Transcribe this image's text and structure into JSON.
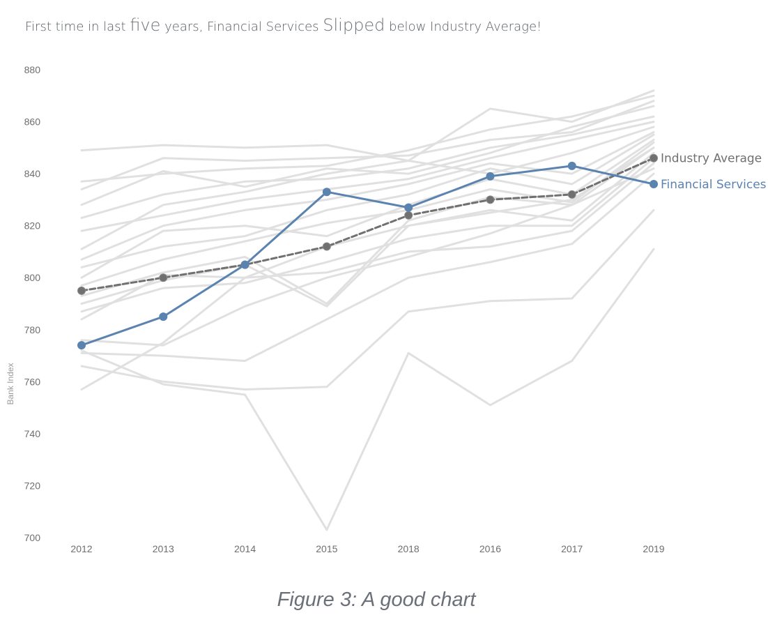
{
  "chart_data": {
    "type": "line",
    "title_parts": {
      "t1": "First time in last ",
      "t2": "five",
      "t3": " years, Financial Services ",
      "t4": "Slipped",
      "t5": " below Industry Average!"
    },
    "ylabel": "Bank Index",
    "xlabel": "",
    "ylim": [
      700,
      880
    ],
    "yticks": [
      700,
      720,
      740,
      760,
      780,
      800,
      820,
      840,
      860,
      880
    ],
    "categories": [
      "2012",
      "2013",
      "2014",
      "2015",
      "2018",
      "2016",
      "2017",
      "2019"
    ],
    "grid": false,
    "highlight_series": [
      {
        "name": "Financial Services",
        "color": "#5b83b0",
        "dashed": false,
        "values": [
          774,
          785,
          805,
          833,
          827,
          839,
          843,
          836
        ]
      },
      {
        "name": "Industry Average",
        "color": "#707070",
        "dashed": true,
        "values": [
          795,
          800,
          805,
          812,
          824,
          830,
          832,
          846
        ]
      }
    ],
    "background_series_color": "#e0e0e0",
    "background_series": [
      [
        849,
        851,
        850,
        851,
        845,
        865,
        860,
        872
      ],
      [
        837,
        840,
        842,
        843,
        849,
        857,
        862,
        870
      ],
      [
        834,
        846,
        845,
        846,
        847,
        853,
        856,
        868
      ],
      [
        828,
        841,
        835,
        842,
        840,
        848,
        858,
        866
      ],
      [
        823,
        832,
        837,
        838,
        842,
        850,
        855,
        862
      ],
      [
        818,
        824,
        830,
        834,
        838,
        846,
        853,
        860
      ],
      [
        811,
        828,
        833,
        840,
        845,
        840,
        848,
        858
      ],
      [
        807,
        820,
        826,
        830,
        836,
        844,
        840,
        856
      ],
      [
        804,
        812,
        816,
        826,
        832,
        842,
        836,
        855
      ],
      [
        800,
        818,
        820,
        816,
        828,
        838,
        832,
        853
      ],
      [
        797,
        807,
        814,
        821,
        826,
        834,
        829,
        852
      ],
      [
        793,
        802,
        808,
        790,
        822,
        831,
        828,
        850
      ],
      [
        790,
        799,
        805,
        789,
        820,
        826,
        822,
        848
      ],
      [
        787,
        796,
        798,
        806,
        815,
        820,
        820,
        846
      ],
      [
        784,
        801,
        800,
        802,
        810,
        812,
        818,
        844
      ],
      [
        776,
        774,
        789,
        800,
        808,
        817,
        828,
        842
      ],
      [
        771,
        770,
        768,
        784,
        800,
        806,
        813,
        840
      ],
      [
        766,
        760,
        757,
        758,
        787,
        791,
        792,
        826
      ],
      [
        772,
        759,
        755,
        703,
        771,
        751,
        768,
        811
      ],
      [
        757,
        775,
        800,
        812,
        820,
        825,
        830,
        850
      ]
    ]
  },
  "caption": "Figure 3: A good chart"
}
